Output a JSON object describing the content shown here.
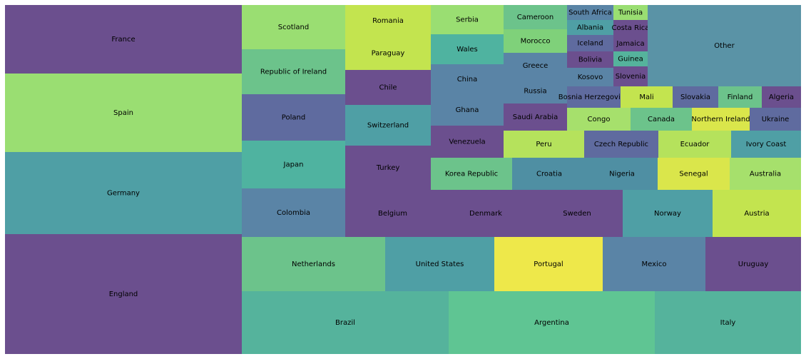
{
  "chart_data": {
    "type": "treemap",
    "title": "",
    "palette": {
      "dark_purple": "#6b4f8e",
      "blue_purple": "#5f6b9f",
      "slate_blue": "#5a84a6",
      "teal": "#4f9fa5",
      "aqua_green": "#55b39c",
      "green": "#6cc38b",
      "light_green": "#9ade72",
      "yellow_green": "#c3e44f",
      "yellow": "#eee84a"
    },
    "nodes": [
      {
        "label": "England",
        "value": 1000,
        "color": "#6b4f8e"
      },
      {
        "label": "Germany",
        "value": 690,
        "color": "#4f9fa5"
      },
      {
        "label": "Spain",
        "value": 630,
        "color": "#9ade72"
      },
      {
        "label": "France",
        "value": 580,
        "color": "#6b4f8e"
      },
      {
        "label": "Brazil",
        "value": 252,
        "color": "#55b39c"
      },
      {
        "label": "Argentina",
        "value": 252,
        "color": "#5fc593"
      },
      {
        "label": "Italy",
        "value": 178,
        "color": "#55b39c"
      },
      {
        "label": "Netherlands",
        "value": 156,
        "color": "#6cc38b"
      },
      {
        "label": "United States",
        "value": 118,
        "color": "#4f9fa5"
      },
      {
        "label": "Portugal",
        "value": 118,
        "color": "#eee84a"
      },
      {
        "label": "Mexico",
        "value": 111,
        "color": "#5a84a6"
      },
      {
        "label": "Uruguay",
        "value": 103,
        "color": "#6b4f8e"
      },
      {
        "label": "Colombia",
        "value": 97,
        "color": "#5a84a6"
      },
      {
        "label": "Japan",
        "value": 97,
        "color": "#4fb3a0"
      },
      {
        "label": "Poland",
        "value": 93,
        "color": "#5f6b9f"
      },
      {
        "label": "Republic of Ireland",
        "value": 91,
        "color": "#6cc38b"
      },
      {
        "label": "Scotland",
        "value": 89,
        "color": "#9ade72"
      },
      {
        "label": "Belgium",
        "value": 85,
        "color": "#6b4f8e"
      },
      {
        "label": "Denmark",
        "value": 91,
        "color": "#6b4f8e"
      },
      {
        "label": "Sweden",
        "value": 92,
        "color": "#6b4f8e"
      },
      {
        "label": "Norway",
        "value": 89,
        "color": "#4f9fa5"
      },
      {
        "label": "Austria",
        "value": 88,
        "color": "#c3e44f"
      },
      {
        "label": "Turkey",
        "value": 65,
        "color": "#6b4f8e"
      },
      {
        "label": "Switzerland",
        "value": 72,
        "color": "#4f9fa5"
      },
      {
        "label": "Chile",
        "value": 62,
        "color": "#6b4f8e"
      },
      {
        "label": "Paraguay",
        "value": 60,
        "color": "#c3e44f"
      },
      {
        "label": "Romania",
        "value": 54,
        "color": "#c3e44f"
      },
      {
        "label": "Korea Republic",
        "value": 56,
        "color": "#6cc38b"
      },
      {
        "label": "Croatia",
        "value": 53,
        "color": "#4f8fa3"
      },
      {
        "label": "Nigeria",
        "value": 54,
        "color": "#4f8fa3"
      },
      {
        "label": "Senegal",
        "value": 49,
        "color": "#dae64b"
      },
      {
        "label": "Australia",
        "value": 52,
        "color": "#a6e06c"
      },
      {
        "label": "Venezuela",
        "value": 39,
        "color": "#6b4f8e"
      },
      {
        "label": "Ghana",
        "value": 39,
        "color": "#5a84a6"
      },
      {
        "label": "China",
        "value": 37,
        "color": "#5a84a6"
      },
      {
        "label": "Wales",
        "value": 36,
        "color": "#4fb3a0"
      },
      {
        "label": "Serbia",
        "value": 36,
        "color": "#9ade72"
      },
      {
        "label": "Peru",
        "value": 33,
        "color": "#b5e25c"
      },
      {
        "label": "Czech Republic",
        "value": 38,
        "color": "#5f6b9f"
      },
      {
        "label": "Ecuador",
        "value": 33,
        "color": "#b5e25c"
      },
      {
        "label": "Ivory Coast",
        "value": 32,
        "color": "#4f9fa5"
      },
      {
        "label": "Saudi Arabia",
        "value": 29,
        "color": "#6b4f8e"
      },
      {
        "label": "Russia",
        "value": 26,
        "color": "#5a84a6"
      },
      {
        "label": "Greece",
        "value": 26,
        "color": "#5a84a6"
      },
      {
        "label": "Morocco",
        "value": 24,
        "color": "#7fd17a"
      },
      {
        "label": "Cameroon",
        "value": 27,
        "color": "#6cc38b"
      },
      {
        "label": "Congo",
        "value": 22,
        "color": "#a6e06c"
      },
      {
        "label": "Canada",
        "value": 22,
        "color": "#6cc38b"
      },
      {
        "label": "Northern Ireland",
        "value": 21,
        "color": "#dae64b"
      },
      {
        "label": "Ukraine",
        "value": 18,
        "color": "#5f6b9f"
      },
      {
        "label": "Bosnia Herzegovina",
        "value": 18,
        "color": "#5f6b9f"
      },
      {
        "label": "Mali",
        "value": 14,
        "color": "#c3e44f"
      },
      {
        "label": "Slovakia",
        "value": 12,
        "color": "#5f6b9f"
      },
      {
        "label": "Finland",
        "value": 12,
        "color": "#6cc38b"
      },
      {
        "label": "Algeria",
        "value": 11,
        "color": "#6b4f8e"
      },
      {
        "label": "South Africa",
        "value": 10,
        "color": "#5a84a6"
      },
      {
        "label": "Albania",
        "value": 10,
        "color": "#4f9fa5"
      },
      {
        "label": "Iceland",
        "value": 10,
        "color": "#5f6b9f"
      },
      {
        "label": "Bolivia",
        "value": 10,
        "color": "#6b4f8e"
      },
      {
        "label": "Kosovo",
        "value": 10,
        "color": "#5a84a6"
      },
      {
        "label": "Tunisia",
        "value": 8,
        "color": "#9ade72"
      },
      {
        "label": "Costa Rica",
        "value": 8,
        "color": "#6b4f8e"
      },
      {
        "label": "Jamaica",
        "value": 8,
        "color": "#6b4f8e"
      },
      {
        "label": "Guinea",
        "value": 8,
        "color": "#55b39c"
      },
      {
        "label": "Slovenia",
        "value": 8,
        "color": "#6b4f8e"
      },
      {
        "label": "Other",
        "value": 80,
        "color": "#5a93a6"
      }
    ]
  }
}
